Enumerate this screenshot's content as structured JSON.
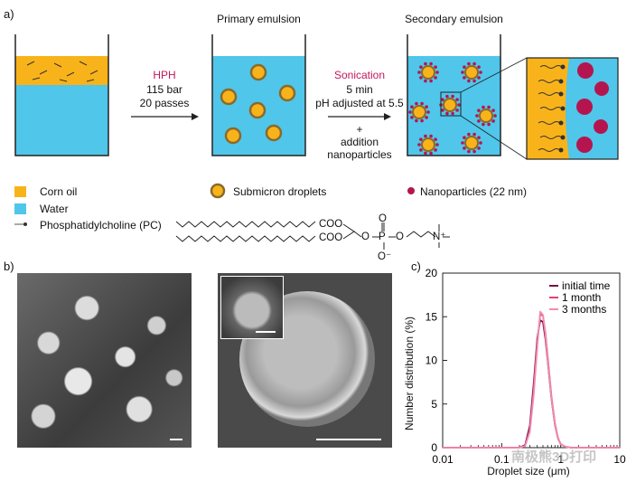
{
  "panels": {
    "a": "a)",
    "b": "b)",
    "c": "c)"
  },
  "schematic": {
    "primary_title": "Primary emulsion",
    "secondary_title": "Secondary emulsion",
    "step1": {
      "method": "HPH",
      "line1": "115 bar",
      "line2": "20 passes"
    },
    "step2": {
      "method": "Sonication",
      "line1": "5 min",
      "line2": "pH adjusted at 5.5",
      "line3": "+",
      "line4": "addition",
      "line5": "nanoparticles"
    }
  },
  "legend": {
    "corn_oil": "Corn oil",
    "water": "Water",
    "pc": "Phosphatidylcholine (PC)",
    "droplets": "Submicron droplets",
    "nanoparticles": "Nanoparticles (22 nm)"
  },
  "molecule": {
    "ester": "COO",
    "phosphorus": "P",
    "oxygen": "O",
    "o_minus": "O⁻",
    "nitrogen": "N⁺"
  },
  "colors": {
    "oil": "#f9b31a",
    "water": "#4fc6ea",
    "nanoparticle": "#b5154f",
    "droplet_ring": "#8a6a2a",
    "series1": "#7a1040",
    "series2": "#e0407a",
    "series3": "#f08cb0"
  },
  "watermark": "南极熊3D打印",
  "chart_data": {
    "type": "line",
    "xlabel": "Droplet size (μm)",
    "ylabel": "Number distribution (%)",
    "x_scale": "log",
    "xlim": [
      0.01,
      10
    ],
    "ylim": [
      0,
      20
    ],
    "x_ticks": [
      "0.01",
      "0.1",
      "1",
      "10"
    ],
    "y_ticks": [
      "0",
      "5",
      "10",
      "15",
      "20"
    ],
    "legend_position": "top-right",
    "series": [
      {
        "name": "initial time",
        "color": "#7a1040",
        "x": [
          0.01,
          0.2,
          0.25,
          0.3,
          0.35,
          0.4,
          0.45,
          0.5,
          0.55,
          0.6,
          0.7,
          0.8,
          0.9,
          1.0,
          1.2,
          1.5,
          10
        ],
        "y": [
          0,
          0,
          0.3,
          2.5,
          7.5,
          12.5,
          14.6,
          14.4,
          12.5,
          10.0,
          5.5,
          2.6,
          1.0,
          0.4,
          0.1,
          0,
          0
        ]
      },
      {
        "name": "1 month",
        "color": "#e0407a",
        "x": [
          0.01,
          0.2,
          0.25,
          0.3,
          0.35,
          0.4,
          0.45,
          0.5,
          0.55,
          0.6,
          0.7,
          0.8,
          0.9,
          1.0,
          1.2,
          1.5,
          10
        ],
        "y": [
          0,
          0,
          0.2,
          2.0,
          6.8,
          12.0,
          15.3,
          15.1,
          13.2,
          10.5,
          5.8,
          2.8,
          1.1,
          0.4,
          0.1,
          0,
          0
        ]
      },
      {
        "name": "3 months",
        "color": "#f08cb0",
        "x": [
          0.01,
          0.2,
          0.25,
          0.3,
          0.35,
          0.4,
          0.45,
          0.5,
          0.55,
          0.6,
          0.7,
          0.8,
          0.9,
          1.0,
          1.2,
          1.5,
          10
        ],
        "y": [
          0,
          0,
          0.2,
          1.8,
          6.2,
          11.5,
          15.6,
          15.2,
          13.0,
          10.2,
          5.6,
          2.7,
          1.0,
          0.4,
          0.1,
          0,
          0
        ]
      }
    ]
  }
}
